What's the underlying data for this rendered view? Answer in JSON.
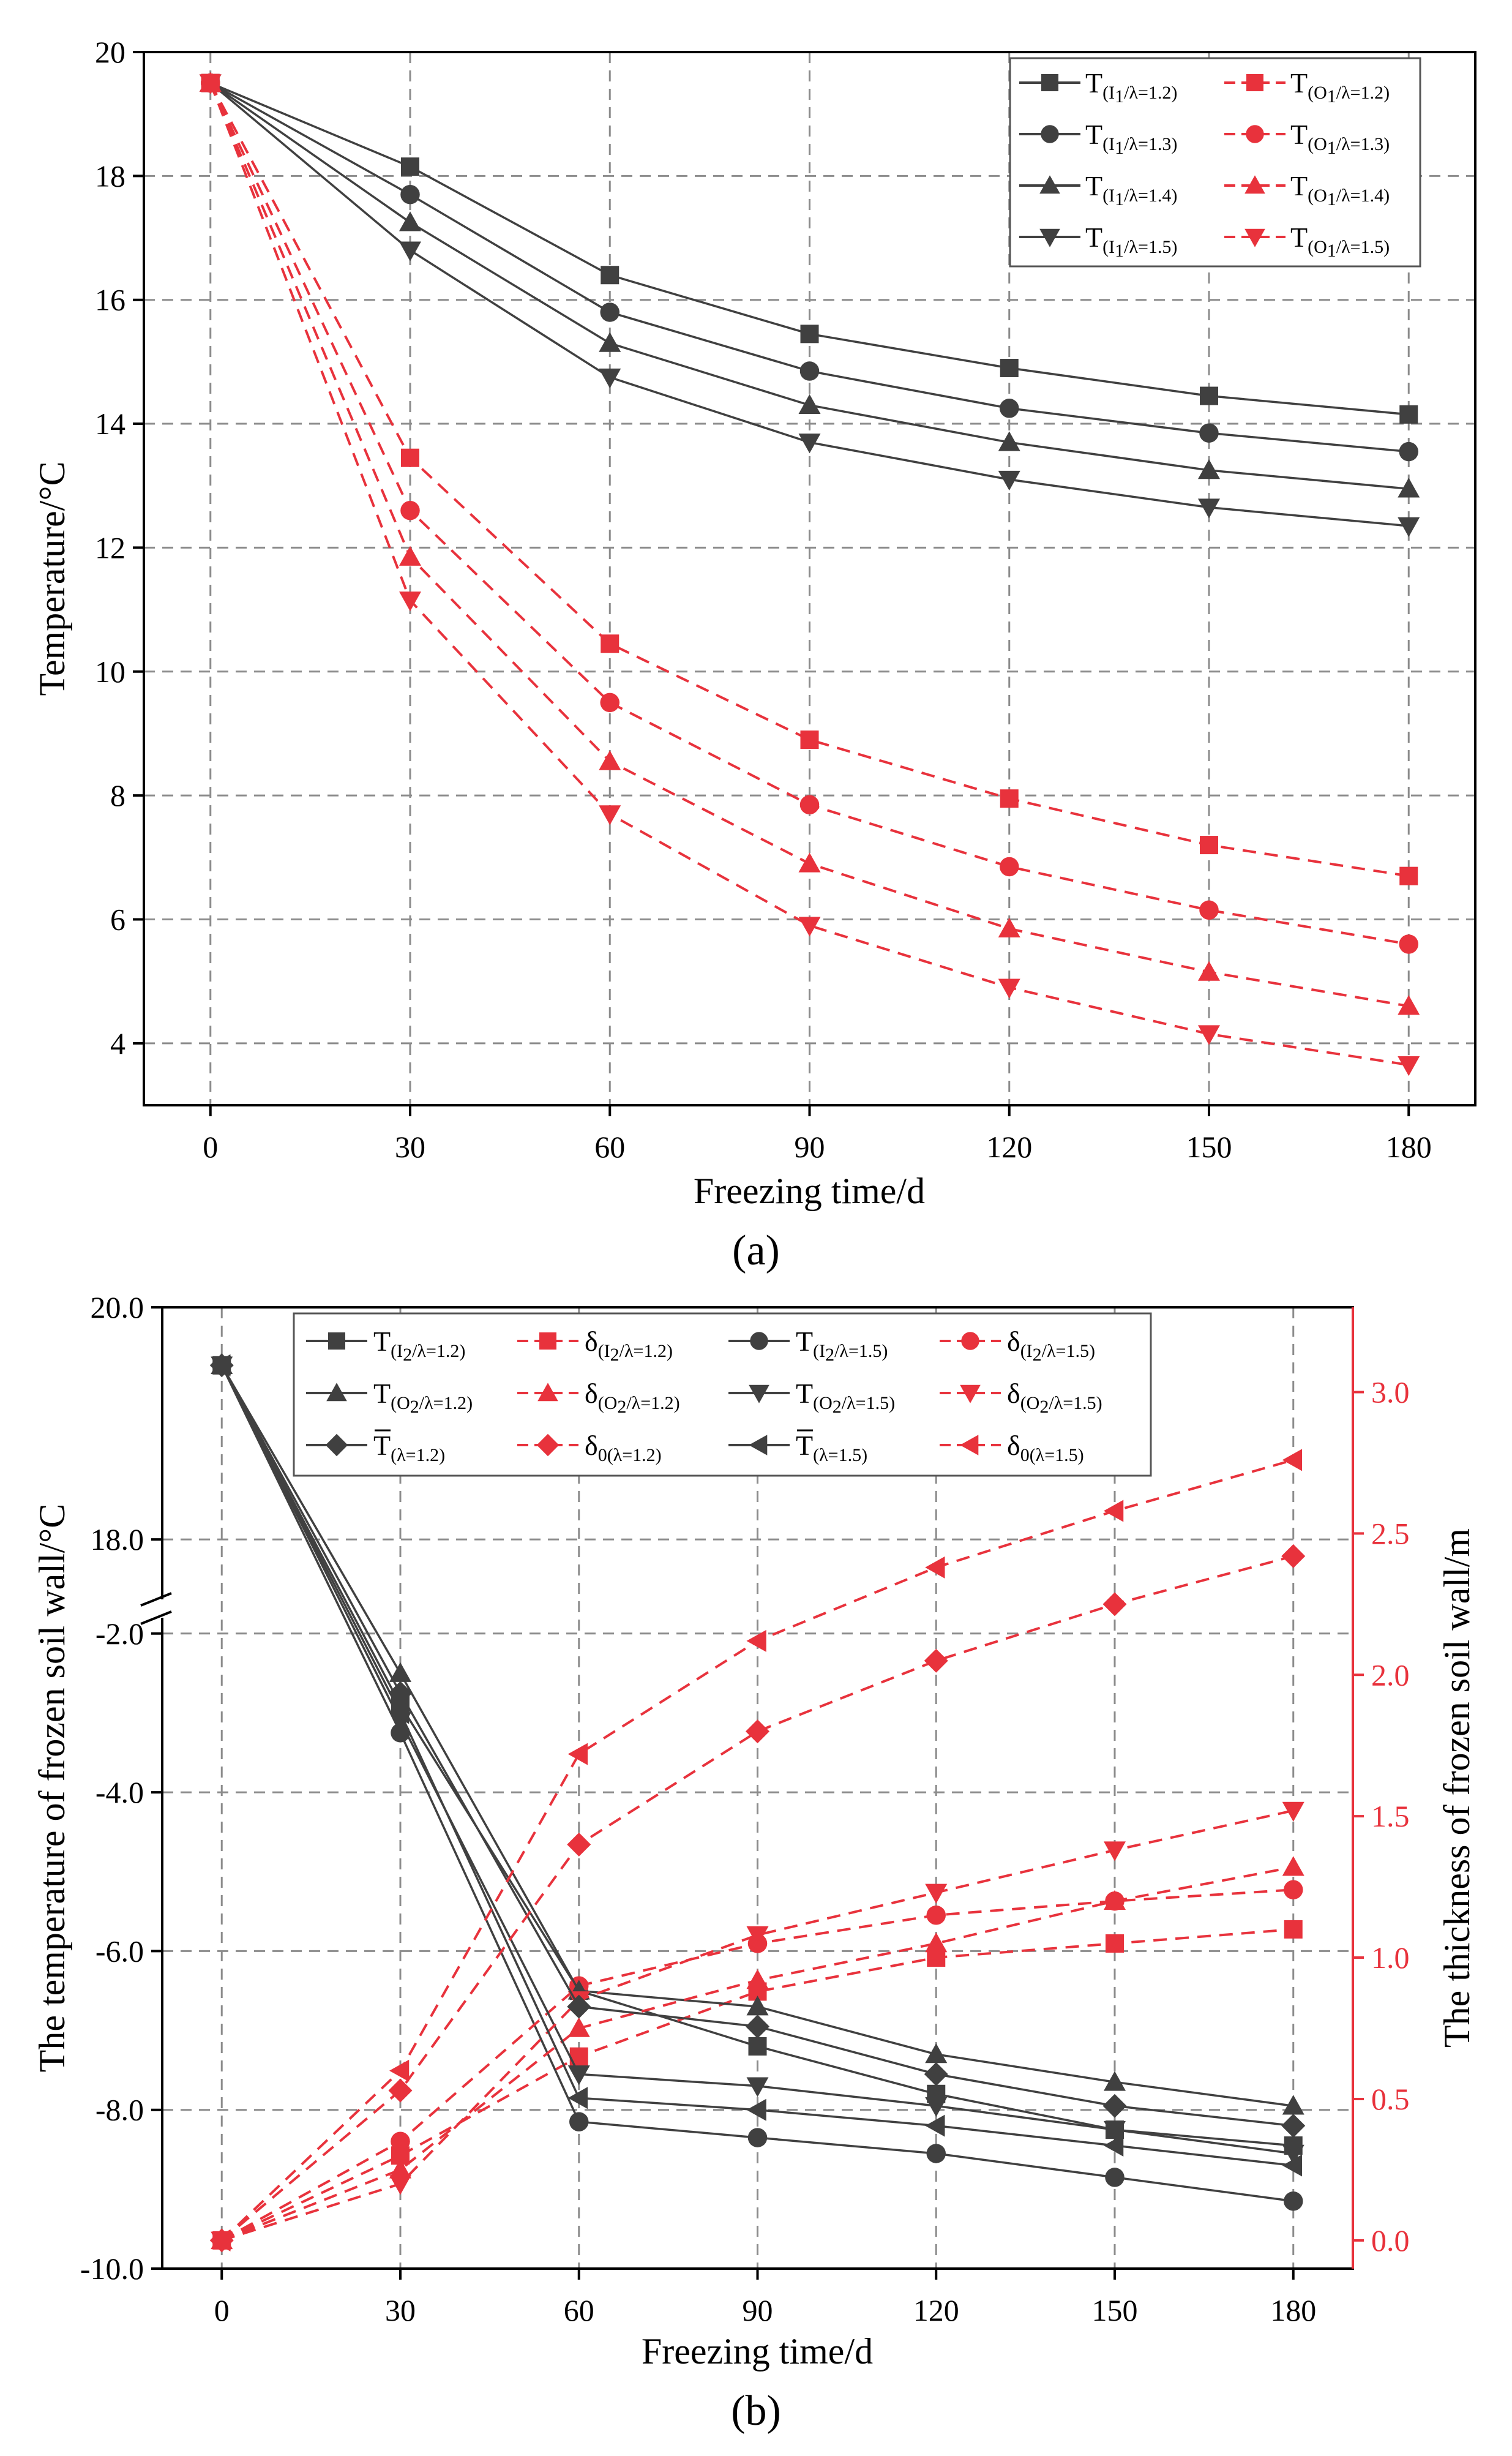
{
  "chart_data": [
    {
      "type": "line",
      "panel": "a",
      "caption": "(a)",
      "xlabel": "Freezing time/d",
      "ylabel": "Temperature/°C",
      "x": [
        0,
        30,
        60,
        90,
        120,
        150,
        180
      ],
      "xticks": [
        "0",
        "30",
        "60",
        "90",
        "120",
        "150",
        "180"
      ],
      "yticks": [
        "4",
        "6",
        "8",
        "10",
        "12",
        "14",
        "16",
        "18",
        "20"
      ],
      "ylim": [
        3.0,
        20.0
      ],
      "xlim": [
        -10,
        190
      ],
      "legend_position": "top-right",
      "series": [
        {
          "name": "T(I1/λ=1.2)",
          "main": "T",
          "sub": "(I",
          "sub2": "1",
          "sub3": "/λ=1.2)",
          "color": "#404040",
          "marker": "square",
          "dash": false,
          "values": [
            19.5,
            18.15,
            16.4,
            15.45,
            14.9,
            14.45,
            14.15
          ]
        },
        {
          "name": "T(I1/λ=1.3)",
          "main": "T",
          "sub": "(I",
          "sub2": "1",
          "sub3": "/λ=1.3)",
          "color": "#404040",
          "marker": "circle",
          "dash": false,
          "values": [
            19.5,
            17.7,
            15.8,
            14.85,
            14.25,
            13.85,
            13.55
          ]
        },
        {
          "name": "T(I1/λ=1.4)",
          "main": "T",
          "sub": "(I",
          "sub2": "1",
          "sub3": "/λ=1.4)",
          "color": "#404040",
          "marker": "triangle",
          "dash": false,
          "values": [
            19.5,
            17.25,
            15.3,
            14.3,
            13.7,
            13.25,
            12.95
          ]
        },
        {
          "name": "T(I1/λ=1.5)",
          "main": "T",
          "sub": "(I",
          "sub2": "1",
          "sub3": "/λ=1.5)",
          "color": "#404040",
          "marker": "triangle-down",
          "dash": false,
          "values": [
            19.5,
            16.8,
            14.75,
            13.7,
            13.1,
            12.65,
            12.35
          ]
        },
        {
          "name": "T(O1/λ=1.2)",
          "main": "T",
          "sub": "(O",
          "sub2": "1",
          "sub3": "/λ=1.2)",
          "color": "#e8323c",
          "marker": "square",
          "dash": true,
          "values": [
            19.5,
            13.45,
            10.45,
            8.9,
            7.95,
            7.2,
            6.7
          ]
        },
        {
          "name": "T(O1/λ=1.3)",
          "main": "T",
          "sub": "(O",
          "sub2": "1",
          "sub3": "/λ=1.3)",
          "color": "#e8323c",
          "marker": "circle",
          "dash": true,
          "values": [
            19.5,
            12.6,
            9.5,
            7.85,
            6.85,
            6.15,
            5.6
          ]
        },
        {
          "name": "T(O1/λ=1.4)",
          "main": "T",
          "sub": "(O",
          "sub2": "1",
          "sub3": "/λ=1.4)",
          "color": "#e8323c",
          "marker": "triangle",
          "dash": true,
          "values": [
            19.5,
            11.85,
            8.55,
            6.9,
            5.85,
            5.15,
            4.6
          ]
        },
        {
          "name": "T(O1/λ=1.5)",
          "main": "T",
          "sub": "(O",
          "sub2": "1",
          "sub3": "/λ=1.5)",
          "color": "#e8323c",
          "marker": "triangle-down",
          "dash": true,
          "values": [
            19.5,
            11.15,
            7.7,
            5.9,
            4.9,
            4.15,
            3.65
          ]
        }
      ]
    },
    {
      "type": "line",
      "panel": "b",
      "caption": "(b)",
      "xlabel": "Freezing time/d",
      "ylabel": "The temperature of frozen soil wall/°C",
      "y2label": "The thickness of frozen soil wall/m",
      "x": [
        0,
        30,
        60,
        90,
        120,
        150,
        180
      ],
      "xticks": [
        "0",
        "30",
        "60",
        "90",
        "120",
        "150",
        "180"
      ],
      "yticks": [
        "-10.0",
        "-8.0",
        "-6.0",
        "-4.0",
        "-2.0",
        "18.0",
        "20.0"
      ],
      "yaxis_break": [
        -1.4,
        17.6
      ],
      "y2ticks": [
        "0.0",
        "0.5",
        "1.0",
        "1.5",
        "2.0",
        "2.5",
        "3.0"
      ],
      "y2lim": [
        -0.1,
        3.3
      ],
      "xlim": [
        -10,
        190
      ],
      "legend_position": "top",
      "series": [
        {
          "name": "T(I2/λ=1.2)",
          "main": "T",
          "sub": "(I",
          "sub2": "2",
          "sub3": "/λ=1.2)",
          "axis": "left",
          "color": "#404040",
          "marker": "square",
          "dash": false,
          "values": [
            19.5,
            -2.9,
            -6.5,
            -7.2,
            -7.8,
            -8.25,
            -8.45
          ]
        },
        {
          "name": "δ(I2/λ=1.2)",
          "main": "δ",
          "sub": "(I",
          "sub2": "2",
          "sub3": "/λ=1.2)",
          "axis": "right",
          "color": "#e8323c",
          "marker": "square",
          "dash": true,
          "values": [
            0.0,
            0.3,
            0.65,
            0.88,
            1.0,
            1.05,
            1.1
          ]
        },
        {
          "name": "T(I2/λ=1.5)",
          "main": "T",
          "sub": "(I",
          "sub2": "2",
          "sub3": "/λ=1.5)",
          "axis": "left",
          "color": "#404040",
          "marker": "circle",
          "dash": false,
          "values": [
            19.5,
            -3.25,
            -8.15,
            -8.35,
            -8.55,
            -8.85,
            -9.15
          ]
        },
        {
          "name": "δ(I2/λ=1.5)",
          "main": "δ",
          "sub": "(I",
          "sub2": "2",
          "sub3": "/λ=1.5)",
          "axis": "right",
          "color": "#e8323c",
          "marker": "circle",
          "dash": true,
          "values": [
            0.0,
            0.35,
            0.9,
            1.05,
            1.15,
            1.2,
            1.24
          ]
        },
        {
          "name": "T(O2/λ=1.2)",
          "main": "T",
          "sub": "(O",
          "sub2": "2",
          "sub3": "/λ=1.2)",
          "axis": "left",
          "color": "#404040",
          "marker": "triangle",
          "dash": false,
          "values": [
            19.5,
            -2.5,
            -6.5,
            -6.7,
            -7.3,
            -7.65,
            -7.95
          ]
        },
        {
          "name": "δ(O2/λ=1.2)",
          "main": "δ",
          "sub": "(O",
          "sub2": "2",
          "sub3": "/λ=1.2)",
          "axis": "right",
          "color": "#e8323c",
          "marker": "triangle",
          "dash": true,
          "values": [
            0.0,
            0.25,
            0.75,
            0.92,
            1.05,
            1.2,
            1.32
          ]
        },
        {
          "name": "T(O2/λ=1.5)",
          "main": "T",
          "sub": "(O",
          "sub2": "2",
          "sub3": "/λ=1.5)",
          "axis": "left",
          "color": "#404040",
          "marker": "triangle-down",
          "dash": false,
          "values": [
            19.5,
            -3.1,
            -7.55,
            -7.7,
            -7.95,
            -8.25,
            -8.55
          ]
        },
        {
          "name": "δ(O2/λ=1.5)",
          "main": "δ",
          "sub": "(O",
          "sub2": "2",
          "sub3": "/λ=1.5)",
          "axis": "right",
          "color": "#e8323c",
          "marker": "triangle-down",
          "dash": true,
          "values": [
            0.0,
            0.2,
            0.85,
            1.08,
            1.23,
            1.38,
            1.52
          ]
        },
        {
          "name": "T(λ=1.2)",
          "main": "T",
          "overline": true,
          "sub": "(λ=1.2)",
          "sub2": "",
          "sub3": "",
          "axis": "left",
          "color": "#404040",
          "marker": "diamond",
          "dash": false,
          "values": [
            19.5,
            -2.75,
            -6.7,
            -6.95,
            -7.55,
            -7.95,
            -8.2
          ]
        },
        {
          "name": "δ0(λ=1.2)",
          "main": "δ",
          "sub": "0(λ=1.2)",
          "sub2": "",
          "sub3": "",
          "axis": "right",
          "color": "#e8323c",
          "marker": "diamond",
          "dash": true,
          "values": [
            0.0,
            0.53,
            1.4,
            1.8,
            2.05,
            2.25,
            2.42
          ]
        },
        {
          "name": "T(λ=1.5)",
          "main": "T",
          "overline": true,
          "sub": "(λ=1.5)",
          "sub2": "",
          "sub3": "",
          "axis": "left",
          "color": "#404040",
          "marker": "triangle-left",
          "dash": false,
          "values": [
            19.5,
            -3.0,
            -7.85,
            -8.0,
            -8.2,
            -8.45,
            -8.7
          ]
        },
        {
          "name": "δ0(λ=1.5)",
          "main": "δ",
          "sub": "0(λ=1.5)",
          "sub2": "",
          "sub3": "",
          "axis": "right",
          "color": "#e8323c",
          "marker": "triangle-left",
          "dash": true,
          "values": [
            0.0,
            0.6,
            1.72,
            2.12,
            2.38,
            2.58,
            2.76
          ]
        }
      ]
    }
  ]
}
